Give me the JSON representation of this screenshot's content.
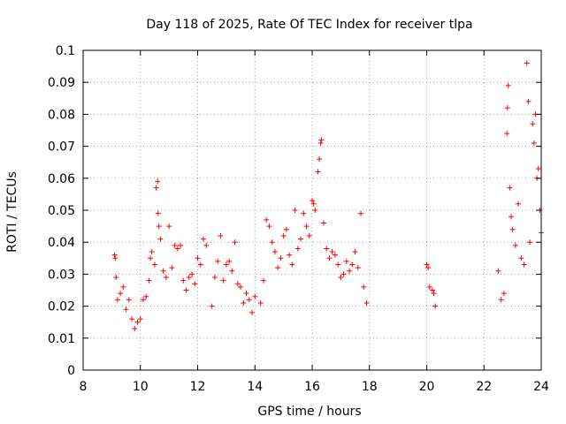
{
  "chart_data": {
    "type": "scatter",
    "title": "Day 118 of 2025, Rate Of TEC Index for receiver tlpa",
    "xlabel": "GPS time / hours",
    "ylabel": "ROTI / TECUs",
    "xlim": [
      8,
      24
    ],
    "ylim": [
      0,
      0.1
    ],
    "xticks": [
      8,
      10,
      12,
      14,
      16,
      18,
      20,
      22,
      24
    ],
    "xtick_labels": [
      "8",
      "10",
      "12",
      "14",
      "16",
      "18",
      "20",
      "22",
      "24"
    ],
    "yticks": [
      0,
      0.01,
      0.02,
      0.03,
      0.04,
      0.05,
      0.06,
      0.07,
      0.08,
      0.09,
      0.1
    ],
    "ytick_labels": [
      "0",
      "0.01",
      "0.02",
      "0.03",
      "0.04",
      "0.05",
      "0.06",
      "0.07",
      "0.08",
      "0.09",
      "0.1"
    ],
    "grid": true,
    "marker": "+",
    "color": "#ff0000",
    "series": [
      {
        "name": "ROTI",
        "points": [
          [
            9.1,
            0.036
          ],
          [
            9.12,
            0.035
          ],
          [
            9.15,
            0.029
          ],
          [
            9.2,
            0.022
          ],
          [
            9.3,
            0.024
          ],
          [
            9.4,
            0.026
          ],
          [
            9.5,
            0.019
          ],
          [
            9.6,
            0.022
          ],
          [
            9.7,
            0.016
          ],
          [
            9.8,
            0.013
          ],
          [
            9.9,
            0.015
          ],
          [
            10.0,
            0.016
          ],
          [
            10.1,
            0.022
          ],
          [
            10.2,
            0.023
          ],
          [
            10.3,
            0.028
          ],
          [
            10.35,
            0.035
          ],
          [
            10.4,
            0.037
          ],
          [
            10.5,
            0.033
          ],
          [
            10.55,
            0.057
          ],
          [
            10.6,
            0.059
          ],
          [
            10.62,
            0.049
          ],
          [
            10.65,
            0.045
          ],
          [
            10.7,
            0.041
          ],
          [
            10.8,
            0.031
          ],
          [
            10.9,
            0.029
          ],
          [
            11.0,
            0.045
          ],
          [
            11.1,
            0.032
          ],
          [
            11.2,
            0.039
          ],
          [
            11.3,
            0.038
          ],
          [
            11.4,
            0.039
          ],
          [
            11.5,
            0.028
          ],
          [
            11.6,
            0.025
          ],
          [
            11.7,
            0.029
          ],
          [
            11.8,
            0.03
          ],
          [
            11.9,
            0.027
          ],
          [
            12.0,
            0.035
          ],
          [
            12.1,
            0.033
          ],
          [
            12.2,
            0.041
          ],
          [
            12.3,
            0.039
          ],
          [
            12.5,
            0.02
          ],
          [
            12.6,
            0.029
          ],
          [
            12.7,
            0.034
          ],
          [
            12.8,
            0.042
          ],
          [
            12.9,
            0.028
          ],
          [
            13.0,
            0.033
          ],
          [
            13.1,
            0.034
          ],
          [
            13.2,
            0.031
          ],
          [
            13.3,
            0.04
          ],
          [
            13.4,
            0.027
          ],
          [
            13.5,
            0.026
          ],
          [
            13.6,
            0.021
          ],
          [
            13.7,
            0.024
          ],
          [
            13.8,
            0.022
          ],
          [
            13.9,
            0.018
          ],
          [
            14.0,
            0.023
          ],
          [
            14.2,
            0.021
          ],
          [
            14.3,
            0.028
          ],
          [
            14.4,
            0.047
          ],
          [
            14.5,
            0.045
          ],
          [
            14.6,
            0.04
          ],
          [
            14.7,
            0.037
          ],
          [
            14.8,
            0.032
          ],
          [
            14.9,
            0.035
          ],
          [
            15.0,
            0.042
          ],
          [
            15.1,
            0.044
          ],
          [
            15.2,
            0.036
          ],
          [
            15.3,
            0.033
          ],
          [
            15.4,
            0.05
          ],
          [
            15.5,
            0.038
          ],
          [
            15.6,
            0.041
          ],
          [
            15.7,
            0.049
          ],
          [
            15.8,
            0.045
          ],
          [
            15.9,
            0.042
          ],
          [
            16.0,
            0.053
          ],
          [
            16.05,
            0.052
          ],
          [
            16.1,
            0.05
          ],
          [
            16.2,
            0.062
          ],
          [
            16.25,
            0.066
          ],
          [
            16.3,
            0.071
          ],
          [
            16.32,
            0.072
          ],
          [
            16.4,
            0.046
          ],
          [
            16.5,
            0.038
          ],
          [
            16.6,
            0.035
          ],
          [
            16.7,
            0.037
          ],
          [
            16.8,
            0.036
          ],
          [
            16.9,
            0.033
          ],
          [
            17.0,
            0.029
          ],
          [
            17.1,
            0.03
          ],
          [
            17.2,
            0.034
          ],
          [
            17.3,
            0.031
          ],
          [
            17.4,
            0.033
          ],
          [
            17.5,
            0.037
          ],
          [
            17.6,
            0.032
          ],
          [
            17.7,
            0.049
          ],
          [
            17.8,
            0.026
          ],
          [
            17.9,
            0.021
          ],
          [
            20.0,
            0.033
          ],
          [
            20.05,
            0.032
          ],
          [
            20.1,
            0.026
          ],
          [
            20.2,
            0.025
          ],
          [
            20.25,
            0.024
          ],
          [
            20.3,
            0.02
          ],
          [
            22.5,
            0.031
          ],
          [
            22.6,
            0.022
          ],
          [
            22.7,
            0.024
          ],
          [
            22.8,
            0.074
          ],
          [
            22.82,
            0.082
          ],
          [
            22.85,
            0.089
          ],
          [
            22.9,
            0.057
          ],
          [
            22.95,
            0.048
          ],
          [
            23.0,
            0.044
          ],
          [
            23.1,
            0.039
          ],
          [
            23.2,
            0.052
          ],
          [
            23.3,
            0.035
          ],
          [
            23.4,
            0.033
          ],
          [
            23.5,
            0.096
          ],
          [
            23.55,
            0.084
          ],
          [
            23.6,
            0.04
          ],
          [
            23.7,
            0.077
          ],
          [
            23.75,
            0.071
          ],
          [
            23.8,
            0.08
          ],
          [
            23.85,
            0.06
          ],
          [
            23.9,
            0.063
          ],
          [
            23.95,
            0.05
          ],
          [
            24.0,
            0.043
          ]
        ]
      }
    ]
  }
}
